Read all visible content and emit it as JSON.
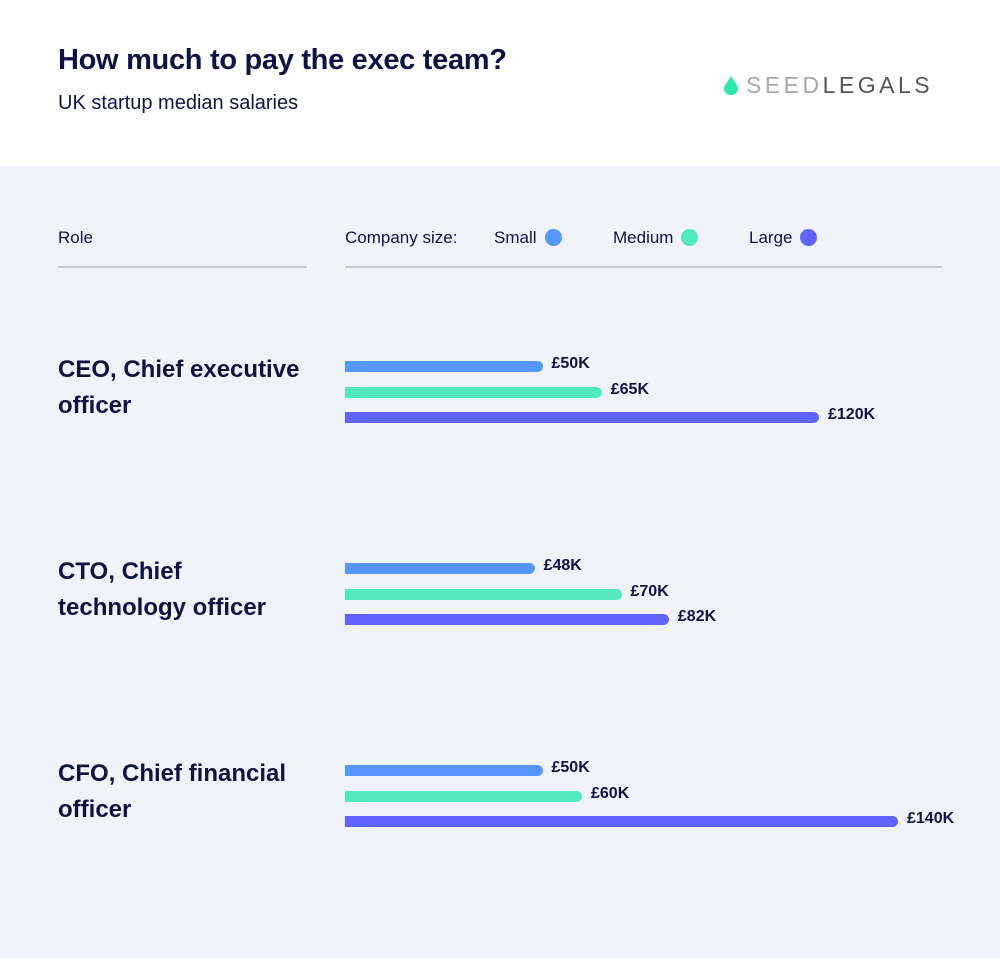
{
  "header": {
    "title": "How much to pay the exec team?",
    "subtitle": "UK startup median salaries",
    "logo": {
      "part1": "SEED",
      "part2": "LEGALS",
      "icon": "drop-icon",
      "icon_color": "#2ee6b0"
    }
  },
  "chart_data": {
    "type": "bar",
    "orientation": "horizontal",
    "role_header": "Role",
    "legend_title": "Company size:",
    "legend_placement": "top",
    "categories": [
      "CEO, Chief executive officer",
      "CTO, Chief technology officer",
      "CFO, Chief financial officer"
    ],
    "series": [
      {
        "name": "Small",
        "color": "#5596ff",
        "values": [
          50,
          48,
          50
        ],
        "labels": [
          "£50K",
          "£48K",
          "£50K"
        ]
      },
      {
        "name": "Medium",
        "color": "#52e8c0",
        "values": [
          65,
          70,
          60
        ],
        "labels": [
          "£65K",
          "£70K",
          "£60K"
        ]
      },
      {
        "name": "Large",
        "color": "#6262ff",
        "values": [
          120,
          82,
          140
        ],
        "labels": [
          "£120K",
          "£82K",
          "£140K"
        ]
      }
    ],
    "unit": "£K",
    "grid": false
  }
}
